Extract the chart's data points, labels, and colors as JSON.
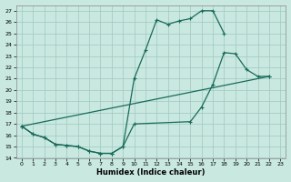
{
  "title": "",
  "xlabel": "Humidex (Indice chaleur)",
  "bg_color": "#c8e8e0",
  "grid_color": "#a0c8c0",
  "line_color": "#1a6b5a",
  "xlim": [
    -0.5,
    23.5
  ],
  "ylim": [
    14,
    27.5
  ],
  "xticks": [
    0,
    1,
    2,
    3,
    4,
    5,
    6,
    7,
    8,
    9,
    10,
    11,
    12,
    13,
    14,
    15,
    16,
    17,
    18,
    19,
    20,
    21,
    22,
    23
  ],
  "yticks": [
    14,
    15,
    16,
    17,
    18,
    19,
    20,
    21,
    22,
    23,
    24,
    25,
    26,
    27
  ],
  "line1_x": [
    0,
    1,
    2,
    3,
    4,
    5,
    6,
    7,
    8,
    9,
    10,
    11,
    12,
    13,
    14,
    15,
    16,
    17,
    18
  ],
  "line1_y": [
    16.8,
    16.1,
    15.8,
    15.2,
    15.1,
    15.0,
    14.6,
    14.4,
    14.4,
    15.0,
    21.0,
    23.5,
    26.2,
    25.8,
    26.1,
    26.3,
    27.0,
    27.0,
    25.0
  ],
  "line2_x": [
    0,
    1,
    2,
    3,
    4,
    5,
    6,
    7,
    8,
    9,
    10,
    15,
    16,
    17,
    18,
    19,
    20,
    21,
    22
  ],
  "line2_y": [
    16.8,
    16.1,
    15.8,
    15.2,
    15.1,
    15.0,
    14.6,
    14.4,
    14.4,
    15.0,
    17.0,
    17.2,
    18.5,
    20.5,
    23.3,
    23.2,
    21.8,
    21.2,
    21.2
  ],
  "line3_x": [
    0,
    22
  ],
  "line3_y": [
    16.8,
    21.2
  ]
}
